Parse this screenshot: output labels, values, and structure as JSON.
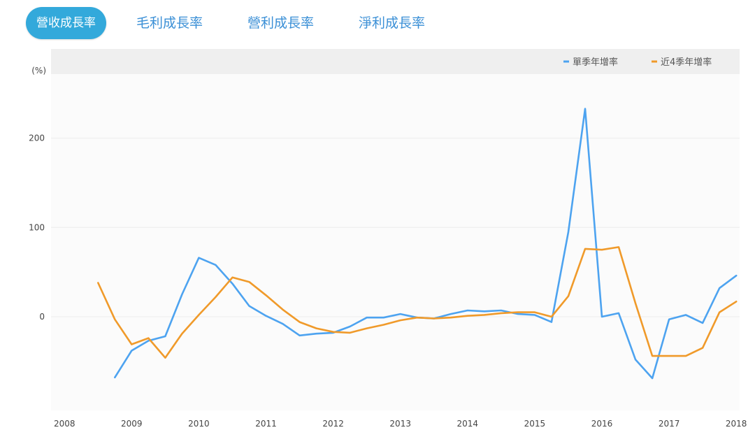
{
  "tabs": [
    {
      "label": "營收成長率",
      "active": true
    },
    {
      "label": "毛利成長率",
      "active": false
    },
    {
      "label": "營利成長率",
      "active": false
    },
    {
      "label": "淨利成長率",
      "active": false
    }
  ],
  "chart_data": {
    "type": "line",
    "ylabel": "(%)",
    "ylim": [
      -105,
      300
    ],
    "yticks": [
      0,
      100,
      200
    ],
    "xlim": [
      2007.8,
      2018.05
    ],
    "xticks": [
      2008,
      2009,
      2010,
      2011,
      2012,
      2013,
      2014,
      2015,
      2016,
      2017,
      2018
    ],
    "grid": true,
    "legend_position": "top-right",
    "series": [
      {
        "name": "單季年增率",
        "color": "#4da3f0",
        "x": [
          2008.75,
          2009.0,
          2009.25,
          2009.5,
          2009.75,
          2010.0,
          2010.25,
          2010.5,
          2010.75,
          2011.0,
          2011.25,
          2011.5,
          2011.75,
          2012.0,
          2012.25,
          2012.5,
          2012.75,
          2013.0,
          2013.25,
          2013.5,
          2013.75,
          2014.0,
          2014.25,
          2014.5,
          2014.75,
          2015.0,
          2015.25,
          2015.5,
          2015.75,
          2016.0,
          2016.25,
          2016.5,
          2016.75,
          2017.0,
          2017.25,
          2017.5,
          2017.75,
          2018.0
        ],
        "values": [
          -68,
          -38,
          -27,
          -22,
          25,
          66,
          58,
          37,
          12,
          1,
          -8,
          -21,
          -19,
          -18,
          -11,
          -1,
          -1,
          3,
          -1,
          -2,
          3,
          7,
          6,
          7,
          3,
          2,
          -6,
          95,
          233,
          0,
          4,
          -48,
          -69,
          -3,
          2,
          -7,
          32,
          46
        ]
      },
      {
        "name": "近4季年增率",
        "color": "#f09a2a",
        "x": [
          2008.5,
          2008.75,
          2009.0,
          2009.25,
          2009.5,
          2009.75,
          2010.0,
          2010.25,
          2010.5,
          2010.75,
          2011.0,
          2011.25,
          2011.5,
          2011.75,
          2012.0,
          2012.25,
          2012.5,
          2012.75,
          2013.0,
          2013.25,
          2013.5,
          2013.75,
          2014.0,
          2014.25,
          2014.5,
          2014.75,
          2015.0,
          2015.25,
          2015.5,
          2015.75,
          2016.0,
          2016.25,
          2016.5,
          2016.75,
          2017.0,
          2017.25,
          2017.5,
          2017.75,
          2018.0
        ],
        "values": [
          38,
          -3,
          -31,
          -24,
          -46,
          -19,
          2,
          22,
          44,
          39,
          24,
          8,
          -6,
          -13,
          -17,
          -18,
          -13,
          -9,
          -4,
          -1,
          -2,
          -1,
          1,
          2,
          4,
          5,
          5,
          0,
          23,
          76,
          75,
          78,
          15,
          -44,
          -44,
          -44,
          -35,
          5,
          17
        ]
      }
    ]
  }
}
